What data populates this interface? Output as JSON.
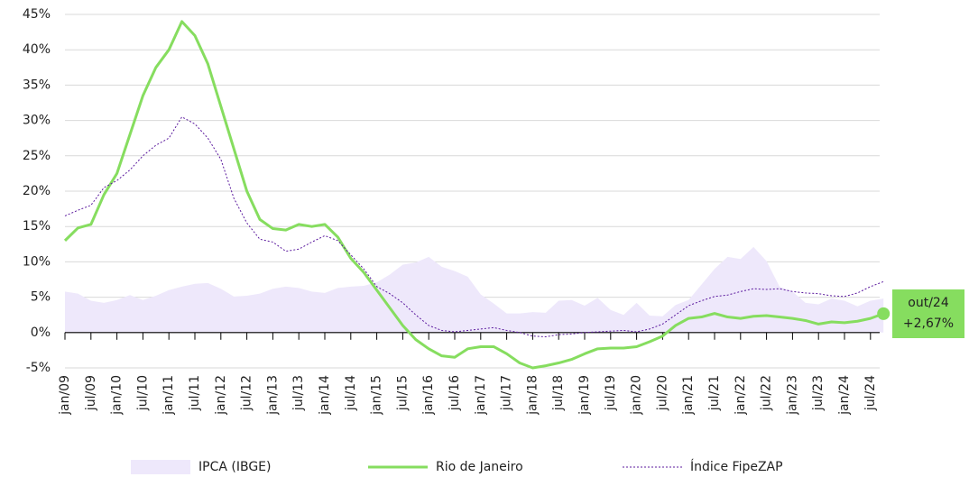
{
  "chart_data": {
    "type": "line",
    "categories": [
      "jan/09",
      null,
      "jul/09",
      null,
      "jan/10",
      null,
      "jul/10",
      null,
      "jan/11",
      null,
      "jul/11",
      null,
      "jan/12",
      null,
      "jul/12",
      null,
      "jan/13",
      null,
      "jul/13",
      null,
      "jan/14",
      null,
      "jul/14",
      null,
      "jan/15",
      null,
      "jul/15",
      null,
      "jan/16",
      null,
      "jul/16",
      null,
      "jan/17",
      null,
      "jul/17",
      null,
      "jan/18",
      null,
      "jul/18",
      null,
      "jan/19",
      null,
      "jul/19",
      null,
      "jan/20",
      null,
      "jul/20",
      null,
      "jan/21",
      null,
      "jul/21",
      null,
      "jan/22",
      null,
      "jul/22",
      null,
      "jan/23",
      null,
      "jul/23",
      null,
      "jan/24",
      null,
      "jul/24",
      null
    ],
    "series": [
      {
        "name": "IPCA (IBGE)",
        "style": "area",
        "color": "#eee8fb",
        "values": [
          5.8,
          5.5,
          4.5,
          4.2,
          4.6,
          5.3,
          4.6,
          5.2,
          6,
          6.5,
          6.9,
          7,
          6.2,
          5.1,
          5.2,
          5.5,
          6.2,
          6.5,
          6.3,
          5.8,
          5.6,
          6.3,
          6.5,
          6.6,
          7.1,
          8.2,
          9.6,
          9.9,
          10.7,
          9.3,
          8.7,
          7.9,
          5.4,
          4.1,
          2.7,
          2.7,
          2.9,
          2.8,
          4.5,
          4.6,
          3.8,
          4.9,
          3.2,
          2.5,
          4.2,
          2.4,
          2.3,
          3.9,
          4.6,
          6.8,
          9,
          10.7,
          10.4,
          12.1,
          10.1,
          6.5,
          5.8,
          4.2,
          4,
          4.8,
          4.5,
          3.7,
          4.5,
          4.8
        ]
      },
      {
        "name": "Rio de Janeiro",
        "style": "solid",
        "color": "#86dd5f",
        "values": [
          13,
          14.8,
          15.3,
          19.5,
          22.5,
          28,
          33.5,
          37.5,
          40,
          44,
          42,
          38,
          32,
          26,
          20,
          16,
          14.7,
          14.5,
          15.3,
          15,
          15.3,
          13.5,
          10.5,
          8.5,
          6,
          3.5,
          1,
          -1,
          -2.3,
          -3.3,
          -3.5,
          -2.3,
          -2,
          -2,
          -3,
          -4.3,
          -5,
          -4.7,
          -4.3,
          -3.8,
          -3,
          -2.3,
          -2.2,
          -2.2,
          -2,
          -1.3,
          -0.5,
          1,
          2,
          2.2,
          2.7,
          2.2,
          2,
          2.3,
          2.4,
          2.2,
          2,
          1.7,
          1.2,
          1.5,
          1.4,
          1.6,
          2,
          2.67
        ]
      },
      {
        "name": "Índice FipeZAP",
        "style": "dashed",
        "color": "#5b1a9e",
        "values": [
          16.5,
          17.3,
          18,
          20.5,
          21.5,
          23,
          25,
          26.5,
          27.5,
          30.5,
          29.5,
          27.5,
          24.5,
          19,
          15.5,
          13.2,
          12.8,
          11.5,
          11.8,
          12.8,
          13.7,
          13,
          11,
          9,
          6.5,
          5.5,
          4.2,
          2.5,
          1,
          0.3,
          0.1,
          0.3,
          0.5,
          0.7,
          0.3,
          0,
          -0.5,
          -0.6,
          -0.3,
          -0.2,
          0,
          0.1,
          0.2,
          0.3,
          0.1,
          0.5,
          1.2,
          2.5,
          3.8,
          4.5,
          5.1,
          5.3,
          5.8,
          6.2,
          6.1,
          6.2,
          5.8,
          5.6,
          5.5,
          5.2,
          5.1,
          5.6,
          6.5,
          7.2
        ]
      }
    ],
    "annotation": {
      "label": "out/24",
      "value_label": "+2,67%"
    },
    "ylim": [
      -5,
      45
    ],
    "yticks": [
      {
        "value": -5,
        "label": "-5%"
      },
      {
        "value": 0,
        "label": "0%"
      },
      {
        "value": 5,
        "label": "5%"
      },
      {
        "value": 10,
        "label": "10%"
      },
      {
        "value": 15,
        "label": "15%"
      },
      {
        "value": 20,
        "label": "20%"
      },
      {
        "value": 25,
        "label": "25%"
      },
      {
        "value": 30,
        "label": "30%"
      },
      {
        "value": 35,
        "label": "35%"
      },
      {
        "value": 40,
        "label": "40%"
      },
      {
        "value": 45,
        "label": "45%"
      }
    ],
    "grid": true
  }
}
